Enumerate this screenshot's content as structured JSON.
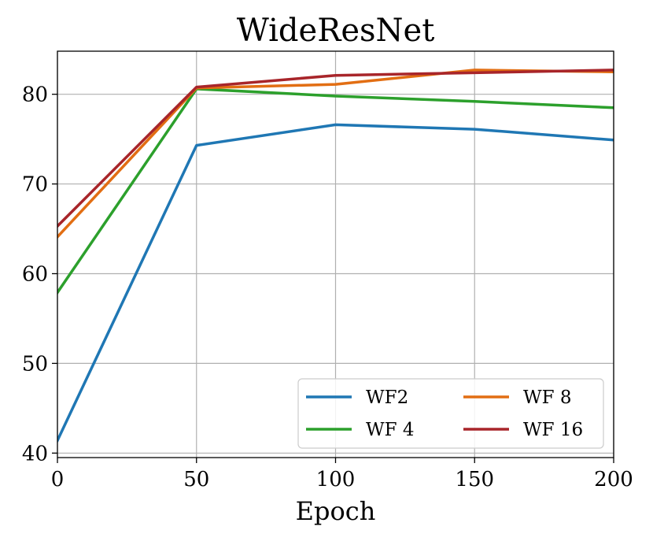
{
  "chart_data": {
    "type": "line",
    "title": "WideResNet",
    "xlabel": "Epoch",
    "ylabel": "",
    "x": [
      0,
      50,
      100,
      150,
      200
    ],
    "xlim": [
      0,
      200
    ],
    "ylim": [
      39.5,
      84.8
    ],
    "xticks": [
      0,
      50,
      100,
      150,
      200
    ],
    "yticks": [
      40,
      50,
      60,
      70,
      80
    ],
    "grid": true,
    "legend": {
      "placement": "lower-right",
      "columns": 2
    },
    "series": [
      {
        "name": "WF2",
        "color": "#1f77b4",
        "values": [
          41.4,
          74.3,
          76.6,
          76.1,
          74.9
        ]
      },
      {
        "name": "WF 4",
        "color": "#2ca02c",
        "values": [
          57.9,
          80.6,
          79.8,
          79.2,
          78.5
        ]
      },
      {
        "name": "WF 8",
        "color": "#e26e13",
        "values": [
          64.1,
          80.7,
          81.1,
          82.7,
          82.5
        ]
      },
      {
        "name": "WF 16",
        "color": "#a8252a",
        "values": [
          65.3,
          80.8,
          82.1,
          82.4,
          82.7
        ]
      }
    ]
  }
}
